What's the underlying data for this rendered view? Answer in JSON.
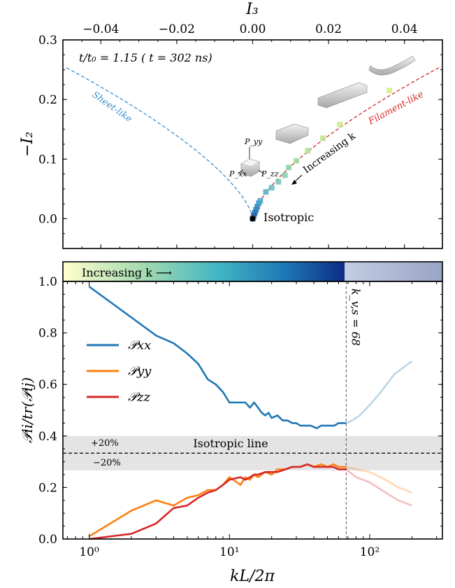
{
  "top_panel": {
    "annotation": "t/t₀ = 1.15 ( t = 302 ns)",
    "sheet_label": "Sheet-like",
    "filament_label": "Filament-like",
    "increasing_label": "Increasing k",
    "isotropic_label": "Isotropic",
    "pyy_label": "P_yy",
    "pxx_label": "P_xx",
    "pzz_label": "P_zz"
  },
  "bottom_panel": {
    "colorbar_label": "Increasing k ⟶",
    "kcut_label": "k_v,s = 68",
    "plus20": "+20%",
    "minus20": "−20%",
    "isotropic_line_label": "Isotropic line",
    "legend": [
      "𝒫xx",
      "𝒫yy",
      "𝒫zz"
    ]
  },
  "colors": {
    "xx": "#1f77b4",
    "yy": "#ff7f0e",
    "zz": "#d62728",
    "sheet": "#3a8fcf",
    "filament": "#d62728",
    "band": "#e4e4e4"
  },
  "chart_data": [
    {
      "type": "scatter",
      "title": "",
      "xlabel": "I₃",
      "ylabel": "−I₂",
      "xlim": [
        -0.05,
        0.05
      ],
      "ylim": [
        -0.05,
        0.3
      ],
      "xticks": [
        -0.04,
        -0.02,
        0.0,
        0.02,
        0.04
      ],
      "xtick_labels": [
        "−0.04",
        "−0.02",
        "0.00",
        "0.02",
        "0.04"
      ],
      "yticks": [
        0.0,
        0.1,
        0.2,
        0.3
      ],
      "ytick_labels": [
        "0.0",
        "0.1",
        "0.2",
        "0.3"
      ],
      "x_axis_position": "top",
      "points": [
        {
          "x": 0.0,
          "y": 0.0
        },
        {
          "x": 0.0003,
          "y": 0.005
        },
        {
          "x": 0.0006,
          "y": 0.01
        },
        {
          "x": 0.0009,
          "y": 0.015
        },
        {
          "x": 0.0012,
          "y": 0.02
        },
        {
          "x": 0.0016,
          "y": 0.026
        },
        {
          "x": 0.002,
          "y": 0.03
        },
        {
          "x": 0.0035,
          "y": 0.045
        },
        {
          "x": 0.005,
          "y": 0.052
        },
        {
          "x": 0.0068,
          "y": 0.062
        },
        {
          "x": 0.0085,
          "y": 0.073
        },
        {
          "x": 0.0095,
          "y": 0.086
        },
        {
          "x": 0.0115,
          "y": 0.097
        },
        {
          "x": 0.0145,
          "y": 0.114
        },
        {
          "x": 0.0185,
          "y": 0.135
        },
        {
          "x": 0.023,
          "y": 0.158
        },
        {
          "x": 0.036,
          "y": 0.215
        }
      ]
    },
    {
      "type": "line",
      "title": "",
      "xlabel": "kL/2π",
      "ylabel": "𝒫ii/tr(𝒫ij)",
      "x_scale": "log",
      "xlim": [
        0.65,
        330
      ],
      "ylim": [
        0.0,
        1.0
      ],
      "xticks": [
        1,
        10,
        100
      ],
      "xtick_labels": [
        "10⁰",
        "10¹",
        "10²"
      ],
      "yticks": [
        0.0,
        0.2,
        0.4,
        0.6,
        0.8,
        1.0
      ],
      "ytick_labels": [
        "0.0",
        "0.2",
        "0.4",
        "0.6",
        "0.8",
        "1.0"
      ],
      "isotropic_value": 0.3333,
      "band_plus": [
        0.3333,
        0.4
      ],
      "band_minus": [
        0.2667,
        0.3333
      ],
      "k_cut": 68,
      "series": [
        {
          "name": "𝒫xx",
          "x": [
            1,
            2,
            3,
            4,
            5,
            6,
            7,
            8,
            9,
            10,
            12,
            13,
            14,
            15,
            16,
            17,
            18,
            19,
            20,
            22,
            24,
            26,
            28,
            30,
            32,
            35,
            38,
            42,
            45,
            48,
            52,
            56,
            60,
            64,
            68,
            75,
            85,
            100,
            120,
            150,
            200
          ],
          "y": [
            0.98,
            0.86,
            0.79,
            0.76,
            0.72,
            0.68,
            0.62,
            0.6,
            0.57,
            0.53,
            0.53,
            0.53,
            0.51,
            0.53,
            0.51,
            0.49,
            0.48,
            0.49,
            0.47,
            0.48,
            0.46,
            0.46,
            0.45,
            0.45,
            0.44,
            0.44,
            0.44,
            0.43,
            0.44,
            0.44,
            0.44,
            0.44,
            0.45,
            0.45,
            0.45,
            0.46,
            0.48,
            0.52,
            0.57,
            0.64,
            0.69
          ]
        },
        {
          "name": "𝒫yy",
          "x": [
            1,
            2,
            3,
            4,
            5,
            6,
            7,
            8,
            9,
            10,
            12,
            13,
            14,
            15,
            16,
            18,
            20,
            22,
            25,
            28,
            32,
            36,
            40,
            45,
            50,
            55,
            60,
            68,
            80,
            100,
            130,
            160,
            200
          ],
          "y": [
            0.01,
            0.11,
            0.15,
            0.13,
            0.16,
            0.17,
            0.19,
            0.19,
            0.21,
            0.24,
            0.21,
            0.24,
            0.23,
            0.25,
            0.24,
            0.26,
            0.25,
            0.27,
            0.27,
            0.28,
            0.28,
            0.29,
            0.28,
            0.29,
            0.28,
            0.29,
            0.28,
            0.28,
            0.27,
            0.26,
            0.23,
            0.2,
            0.18
          ]
        },
        {
          "name": "𝒫zz",
          "x": [
            1,
            2,
            3,
            4,
            5,
            6,
            7,
            8,
            9,
            10,
            12,
            13,
            14,
            15,
            16,
            18,
            20,
            22,
            25,
            28,
            32,
            36,
            40,
            45,
            50,
            55,
            60,
            68,
            80,
            100,
            130,
            160,
            200
          ],
          "y": [
            0.0,
            0.02,
            0.06,
            0.12,
            0.13,
            0.16,
            0.18,
            0.19,
            0.21,
            0.23,
            0.24,
            0.23,
            0.24,
            0.25,
            0.25,
            0.26,
            0.26,
            0.26,
            0.27,
            0.28,
            0.28,
            0.29,
            0.28,
            0.28,
            0.28,
            0.28,
            0.27,
            0.27,
            0.24,
            0.22,
            0.18,
            0.15,
            0.13
          ]
        }
      ]
    }
  ]
}
